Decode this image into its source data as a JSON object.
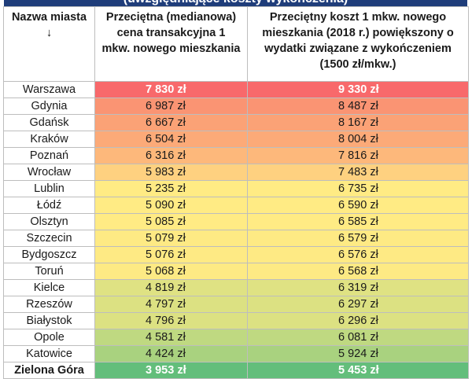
{
  "banner": {
    "title": "(uwzględniające koszty wykończenia)"
  },
  "headers": {
    "city": "Nazwa miasta",
    "city_sort": "↓",
    "median": "Przeciętna (medianowa) cena transakcyjna 1 mkw. nowego mieszkania",
    "total": "Przeciętny koszt 1 mkw. nowego mieszkania (2018 r.) powiększony o wydatki związane z wykończeniem (1500 zł/mkw.)"
  },
  "colors": {
    "red": "#f8696b",
    "orange": "#fba276",
    "yellow": "#ffeb84",
    "green": "#63be7b"
  },
  "rows": [
    {
      "city": "Warszawa",
      "median": "7 830 zł",
      "total": "9 330 zł",
      "color": "#f8696b"
    },
    {
      "city": "Gdynia",
      "median": "6 987 zł",
      "total": "8 487 zł",
      "color": "#fa9473"
    },
    {
      "city": "Gdańsk",
      "median": "6 667 zł",
      "total": "8 167 zł",
      "color": "#fba276"
    },
    {
      "city": "Kraków",
      "median": "6 504 zł",
      "total": "8 004 zł",
      "color": "#fcaa78"
    },
    {
      "city": "Poznań",
      "median": "6 316 zł",
      "total": "7 816 zł",
      "color": "#fdb87b"
    },
    {
      "city": "Wrocław",
      "median": "5 983 zł",
      "total": "7 483 zł",
      "color": "#fed180"
    },
    {
      "city": "Lublin",
      "median": "5 235 zł",
      "total": "6 735 zł",
      "color": "#ffeb84"
    },
    {
      "city": "Łódź",
      "median": "5 090 zł",
      "total": "6 590 zł",
      "color": "#ffeb84"
    },
    {
      "city": "Olsztyn",
      "median": "5 085 zł",
      "total": "6 585 zł",
      "color": "#ffeb84"
    },
    {
      "city": "Szczecin",
      "median": "5 079 zł",
      "total": "6 579 zł",
      "color": "#feea84"
    },
    {
      "city": "Bydgoszcz",
      "median": "5 076 zł",
      "total": "6 576 zł",
      "color": "#feea84"
    },
    {
      "city": "Toruń",
      "median": "5 068 zł",
      "total": "6 568 zł",
      "color": "#fdea84"
    },
    {
      "city": "Kielce",
      "median": "4 819 zł",
      "total": "6 319 zł",
      "color": "#dfe283"
    },
    {
      "city": "Rzeszów",
      "median": "4 797 zł",
      "total": "6 297 zł",
      "color": "#dce182"
    },
    {
      "city": "Białystok",
      "median": "4 796 zł",
      "total": "6 296 zł",
      "color": "#dce182"
    },
    {
      "city": "Opole",
      "median": "4 581 zł",
      "total": "6 081 zł",
      "color": "#bfd981"
    },
    {
      "city": "Katowice",
      "median": "4 424 zł",
      "total": "5 924 zł",
      "color": "#a9d27f"
    },
    {
      "city": "Zielona Góra",
      "median": "3 953 zł",
      "total": "5 453 zł",
      "color": "#63be7b"
    }
  ]
}
